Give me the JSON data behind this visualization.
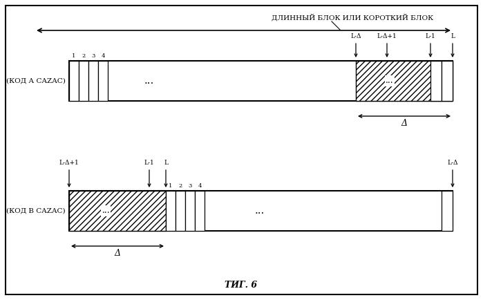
{
  "title": "ΤИГ. 6",
  "top_label": "ДЛИННЫЙ БЛОК ИЛИ КОРОТКИЙ БЛОК",
  "label_a": "(КОД А CAZAC)",
  "label_b": "(КОД В CAZAC)",
  "delta_label": "Δ",
  "fig_background": "#ffffff"
}
